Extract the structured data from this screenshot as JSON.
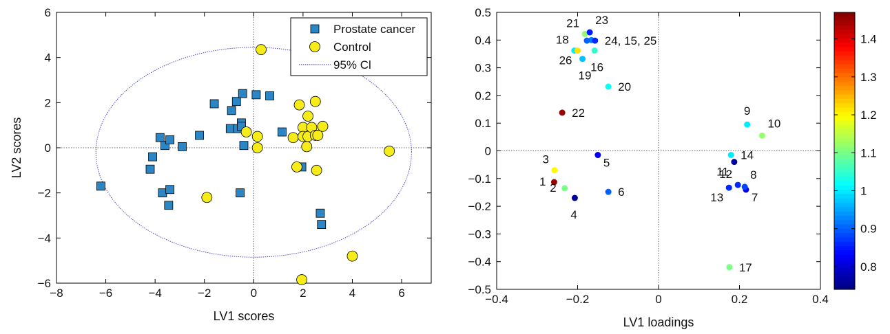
{
  "chart_data": [
    {
      "type": "scatter",
      "xlabel": "LV1 scores",
      "ylabel": "LV2 scores",
      "xlim": [
        -8,
        7.2
      ],
      "ylim": [
        -6,
        6
      ],
      "xticks": [
        "−8",
        "−6",
        "−4",
        "−2",
        "0",
        "2",
        "4",
        "6"
      ],
      "xtick_values": [
        -8,
        -6,
        -4,
        -2,
        0,
        2,
        4,
        6
      ],
      "yticks": [
        "−6",
        "−4",
        "−2",
        "0",
        "2",
        "4",
        "6"
      ],
      "ytick_values": [
        -6,
        -4,
        -2,
        0,
        2,
        4,
        6
      ],
      "grid": false,
      "zero_lines": true,
      "legend_position": "top-right",
      "legend": [
        "Prostate cancer",
        "Control",
        "95% Cl"
      ],
      "ellipse": {
        "center": [
          0,
          -0.2
        ],
        "radius_x": 6.4,
        "radius_y": 4.65
      },
      "series": [
        {
          "name": "Prostate cancer",
          "marker": "square",
          "color": "#2b86c6",
          "points": [
            [
              -6.2,
              -1.7
            ],
            [
              -4.2,
              -0.95
            ],
            [
              -4.1,
              -0.4
            ],
            [
              -3.8,
              0.45
            ],
            [
              -3.6,
              0.1
            ],
            [
              -3.4,
              0.35
            ],
            [
              -3.7,
              -2.0
            ],
            [
              -3.4,
              -1.85
            ],
            [
              -3.45,
              -2.55
            ],
            [
              -2.9,
              0.05
            ],
            [
              -2.2,
              0.55
            ],
            [
              -1.6,
              1.95
            ],
            [
              -0.9,
              1.65
            ],
            [
              -0.95,
              0.85
            ],
            [
              -0.7,
              2.05
            ],
            [
              -0.65,
              0.85
            ],
            [
              -0.5,
              1.1
            ],
            [
              -0.5,
              0.95
            ],
            [
              -0.45,
              2.4
            ],
            [
              -0.4,
              0.1
            ],
            [
              -0.55,
              -2.0
            ],
            [
              0.1,
              2.35
            ],
            [
              0.65,
              2.3
            ],
            [
              1.15,
              0.7
            ],
            [
              1.95,
              -0.85
            ],
            [
              2.7,
              -2.9
            ],
            [
              2.75,
              -3.4
            ]
          ]
        },
        {
          "name": "Control",
          "marker": "circle",
          "color": "#f5ec1a",
          "points": [
            [
              0.3,
              4.35
            ],
            [
              -0.3,
              0.7
            ],
            [
              0.15,
              0.5
            ],
            [
              0.15,
              0.0
            ],
            [
              -1.9,
              -2.2
            ],
            [
              1.6,
              0.45
            ],
            [
              1.85,
              1.9
            ],
            [
              2.0,
              0.9
            ],
            [
              2.0,
              0.5
            ],
            [
              2.15,
              0.05
            ],
            [
              2.2,
              0.5
            ],
            [
              2.2,
              1.4
            ],
            [
              2.35,
              0.9
            ],
            [
              2.5,
              0.55
            ],
            [
              2.5,
              2.05
            ],
            [
              2.6,
              0.55
            ],
            [
              2.8,
              0.95
            ],
            [
              1.75,
              -0.85
            ],
            [
              2.55,
              -1.0
            ],
            [
              1.95,
              -5.85
            ],
            [
              4.0,
              -4.8
            ],
            [
              5.5,
              -0.15
            ]
          ]
        }
      ]
    },
    {
      "type": "scatter",
      "xlabel": "LV1 loadings",
      "ylabel": "",
      "xlim": [
        -0.4,
        0.4
      ],
      "ylim": [
        -0.5,
        0.5
      ],
      "xticks": [
        "−0.4",
        "−0.2",
        "0",
        "0.2",
        "0.4"
      ],
      "xtick_values": [
        -0.4,
        -0.2,
        0,
        0.2,
        0.4
      ],
      "yticks": [
        "−0.5",
        "−0.4",
        "−0.3",
        "−0.2",
        "−0.1",
        "0",
        "0.1",
        "0.2",
        "0.3",
        "0.4",
        "0.5"
      ],
      "ytick_values": [
        -0.5,
        -0.4,
        -0.3,
        -0.2,
        -0.1,
        0,
        0.1,
        0.2,
        0.3,
        0.4,
        0.5
      ],
      "grid": false,
      "zero_lines": true,
      "colorbar": {
        "colormap": "jet",
        "range": [
          0.74,
          1.47
        ],
        "ticks": [
          "0.8",
          "0.9",
          "1",
          "1.1",
          "1.2",
          "1.3",
          "1.4"
        ],
        "tick_values": [
          0.8,
          0.9,
          1.0,
          1.1,
          1.2,
          1.3,
          1.4
        ]
      },
      "points": [
        {
          "label": "1",
          "x": -0.258,
          "y": -0.113,
          "value": 1.45,
          "label_pos": "left"
        },
        {
          "label": "2",
          "x": -0.232,
          "y": -0.135,
          "value": 1.1,
          "label_pos": "left"
        },
        {
          "label": "3",
          "x": -0.257,
          "y": -0.07,
          "value": 1.2,
          "label_pos": "upper-left"
        },
        {
          "label": "4",
          "x": -0.207,
          "y": -0.17,
          "value": 0.76,
          "label_pos": "below"
        },
        {
          "label": "5",
          "x": -0.15,
          "y": -0.015,
          "value": 0.82,
          "label_pos": "lower-right"
        },
        {
          "label": "6",
          "x": -0.124,
          "y": -0.148,
          "value": 0.9,
          "label_pos": "right"
        },
        {
          "label": "7",
          "x": 0.216,
          "y": -0.14,
          "value": 0.82,
          "label_pos": "lower-right"
        },
        {
          "label": "8",
          "x": 0.213,
          "y": -0.13,
          "value": 0.88,
          "label_pos": "upper-right"
        },
        {
          "label": "9",
          "x": 0.219,
          "y": 0.095,
          "value": 1.0,
          "label_pos": "above"
        },
        {
          "label": "10",
          "x": 0.256,
          "y": 0.055,
          "value": 1.12,
          "label_pos": "upper-right"
        },
        {
          "label": "11",
          "x": 0.187,
          "y": -0.04,
          "value": 0.76,
          "label_pos": "lower-left"
        },
        {
          "label": "12",
          "x": 0.196,
          "y": -0.123,
          "value": 0.86,
          "label_pos": "upper-left"
        },
        {
          "label": "13",
          "x": 0.174,
          "y": -0.133,
          "value": 0.86,
          "label_pos": "lower-left"
        },
        {
          "label": "14",
          "x": 0.179,
          "y": -0.015,
          "value": 1.0,
          "label_pos": "right"
        },
        {
          "label": "15",
          "x": -0.166,
          "y": 0.4,
          "value": 0.92,
          "label_pos": "none"
        },
        {
          "label": "16",
          "x": -0.158,
          "y": 0.362,
          "value": 1.05,
          "label_pos": "below"
        },
        {
          "label": "17",
          "x": 0.175,
          "y": -0.42,
          "value": 1.1,
          "label_pos": "right"
        },
        {
          "label": "18",
          "x": -0.208,
          "y": 0.362,
          "value": 1.0,
          "label_pos": "upper-left"
        },
        {
          "label": "19",
          "x": -0.188,
          "y": 0.332,
          "value": 0.97,
          "label_pos": "below"
        },
        {
          "label": "20",
          "x": -0.124,
          "y": 0.232,
          "value": 1.02,
          "label_pos": "right"
        },
        {
          "label": "21",
          "x": -0.182,
          "y": 0.422,
          "value": 1.12,
          "label_pos": "upper-left"
        },
        {
          "label": "22",
          "x": -0.238,
          "y": 0.138,
          "value": 1.45,
          "label_pos": "right"
        },
        {
          "label": "23",
          "x": -0.17,
          "y": 0.428,
          "value": 0.85,
          "label_pos": "upper-right"
        },
        {
          "label": "24, 15, 25",
          "x": -0.157,
          "y": 0.398,
          "value": 0.86,
          "label_pos": "right"
        },
        {
          "label": "25",
          "x": -0.177,
          "y": 0.398,
          "value": 0.9,
          "label_pos": "none"
        },
        {
          "label": "26",
          "x": -0.2,
          "y": 0.362,
          "value": 1.22,
          "label_pos": "lower-left"
        }
      ]
    }
  ]
}
